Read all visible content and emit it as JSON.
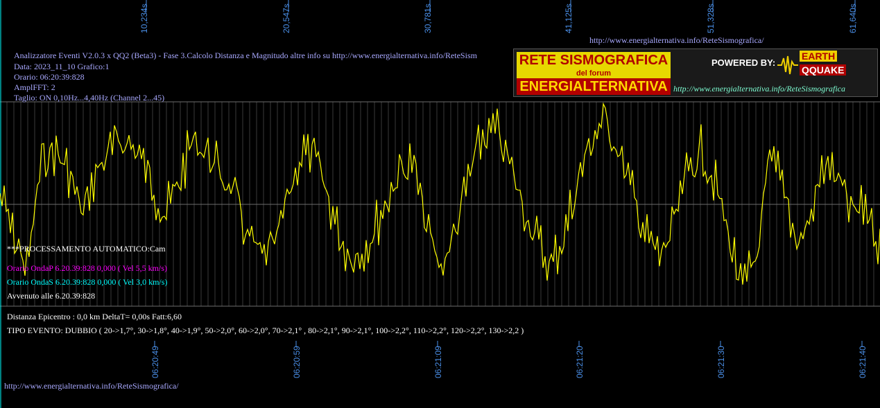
{
  "top_url": "http://www.energialternativa.info/ReteSismografica/",
  "bottom_url": "http://www.energialternativa.info/ReteSismografica/",
  "info": {
    "line1": "Analizzatore Eventi V2.0.3 x QQ2 (Beta3) - Fase 3.Calcolo Distanza e Magnitudo altre info su http://www.energialternativa.info/ReteSism",
    "line2": "Data: 2023_11_10 Grafico:1",
    "line3": "Orario: 06:20:39:828",
    "line4": "AmplFFT: 2",
    "line5": "Taglio: ON 0,10Hz...4,40Hz       (Channel 2...45)"
  },
  "logo": {
    "title1": "RETE SISMOGRAFICA",
    "title2": "del forum",
    "title3": "ENERGIALTERNATIVA",
    "powered": "POWERED BY:",
    "brand1": "EARTH",
    "brand2": "QQUAKE",
    "url": "http://www.energialternativa.info/ReteSismografica"
  },
  "overlay": {
    "processing": "***PROCESSAMENTO AUTOMATICO:Cam",
    "onda_p": "Orario OndaP 6.20.39:828  0,000 ( Vel 5,5 km/s)",
    "onda_s": "Orario OndaS 6.20.39:828  0,000 ( Vel 3,0 km/s)",
    "avvenuto": "Avvenuto alle 6.20.39:828",
    "distanza": "Distanza Epicentro : 0,0 km DeltaT= 0,00s  Fatt:6,60",
    "tipo": "TIPO EVENTO: DUBBIO ( 20->1,7°, 30->1,8°, 40->1,9°, 50->2,0°, 60->2,0°, 70->2,1° , 80->2,1°, 90->2,1°, 100->2,2°, 110->2,2°, 120->2,2°, 130->2,2 )"
  },
  "colors": {
    "trace": "#ffff00",
    "grid": "#6e6e6e",
    "axis_label": "#4a8fe8",
    "info_text": "#a9a9ff",
    "onda_p": "#ff00ff",
    "onda_s": "#00ffff",
    "plain_text": "#ffffff"
  },
  "chart_data": {
    "type": "line",
    "top_ticks": [
      "10,234s",
      "20,547s",
      "30,781s",
      "41,125s",
      "51,328s",
      "61,640s"
    ],
    "bottom_ticks": [
      "06:20:49",
      "06:20:59",
      "06:21:09",
      "06:21:20",
      "06:21:30",
      "06:21:40"
    ],
    "series": [
      {
        "x": [
          0,
          1,
          2,
          3,
          4,
          5,
          6,
          7,
          8,
          9,
          10,
          11,
          12,
          13,
          14,
          15,
          16,
          17,
          18,
          19,
          20,
          21,
          22,
          23,
          24,
          25,
          26,
          27,
          28,
          29,
          30,
          31,
          32,
          33,
          34,
          35,
          36,
          37,
          38,
          39,
          40,
          41,
          42,
          43,
          44,
          45,
          46,
          47,
          48,
          49,
          50,
          51,
          52,
          53,
          54,
          55,
          56,
          57,
          58,
          59,
          60,
          61,
          62,
          63,
          64
        ],
        "values": [
          0.1,
          -0.3,
          -0.6,
          0.4,
          0.5,
          0.3,
          -0.1,
          0.3,
          0.5,
          0.6,
          0.5,
          0.2,
          -0.1,
          0.2,
          0.6,
          0.5,
          0.3,
          0.1,
          -0.3,
          -0.5,
          -0.4,
          0.1,
          0.5,
          0.4,
          0.0,
          -0.4,
          -0.5,
          -0.3,
          0.0,
          0.3,
          0.4,
          -0.2,
          -0.6,
          -0.3,
          0.2,
          0.6,
          0.7,
          0.4,
          0.0,
          -0.3,
          -0.6,
          -0.3,
          0.2,
          0.6,
          0.8,
          0.5,
          0.1,
          -0.3,
          -0.5,
          -0.2,
          0.3,
          0.5,
          0.2,
          -0.3,
          -0.8,
          -0.5,
          0.4,
          0.2,
          -0.4,
          -0.1,
          0.4,
          0.2,
          -0.1,
          0.0,
          -0.4
        ]
      }
    ],
    "baseline": 0,
    "ylim": [
      -1,
      1
    ],
    "grid": true
  }
}
